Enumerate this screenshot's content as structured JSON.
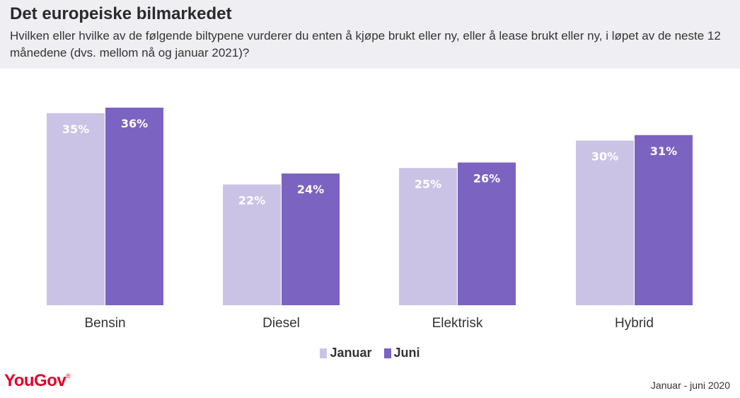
{
  "header": {
    "title": "Det europeiske bilmarkedet",
    "subtitle": "Hvilken eller hvilke av de følgende biltypene vurderer du enten å kjøpe brukt eller ny, eller å lease brukt eller ny, i løpet av de neste 12 månedene (dvs. mellom nå og januar 2021)?"
  },
  "chart_data": {
    "type": "bar",
    "categories": [
      "Bensin",
      "Diesel",
      "Elektrisk",
      "Hybrid"
    ],
    "series": [
      {
        "name": "Januar",
        "values": [
          35,
          22,
          25,
          30
        ],
        "color": "#cbc3e6"
      },
      {
        "name": "Juni",
        "values": [
          36,
          24,
          26,
          31
        ],
        "color": "#7b63c1"
      }
    ],
    "value_suffix": "%",
    "title": "",
    "xlabel": "",
    "ylabel": "",
    "ylim": [
      0,
      36
    ],
    "grid": false,
    "legend": "bottom-center"
  },
  "footer": {
    "logo": "YouGov",
    "logo_mark": "®",
    "date_range": "Januar - juni 2020"
  }
}
